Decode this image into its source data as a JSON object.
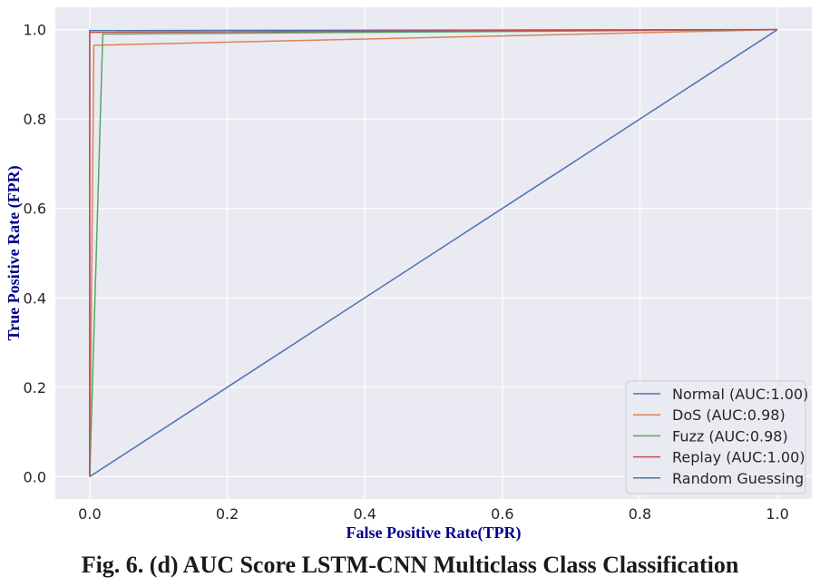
{
  "caption": "Fig. 6. (d) AUC Score LSTM-CNN Multiclass Class Classification",
  "chart_data": {
    "type": "line",
    "title": "",
    "xlabel": "False Positive Rate(TPR)",
    "ylabel": "True Positive Rate (FPR)",
    "xlim": [
      -0.05,
      1.05
    ],
    "ylim": [
      -0.05,
      1.05
    ],
    "xticks": [
      0.0,
      0.2,
      0.4,
      0.6,
      0.8,
      1.0
    ],
    "yticks": [
      0.0,
      0.2,
      0.4,
      0.6,
      0.8,
      1.0
    ],
    "xtick_labels": [
      "0.0",
      "0.2",
      "0.4",
      "0.6",
      "0.8",
      "1.0"
    ],
    "ytick_labels": [
      "0.0",
      "0.2",
      "0.4",
      "0.6",
      "0.8",
      "1.0"
    ],
    "grid": true,
    "background": "#eaeaf2",
    "legend_position": "lower-right",
    "series": [
      {
        "name": "Normal (AUC:1.00)",
        "color": "#4c72b0",
        "x": [
          0.0,
          0.0,
          1.0
        ],
        "y": [
          0.0,
          0.998,
          1.0
        ]
      },
      {
        "name": "DoS (AUC:0.98)",
        "color": "#dd8452",
        "x": [
          0.0,
          0.006,
          1.0
        ],
        "y": [
          0.0,
          0.965,
          1.0
        ]
      },
      {
        "name": "Fuzz (AUC:0.98)",
        "color": "#55a868",
        "x": [
          0.0,
          0.019,
          1.0
        ],
        "y": [
          0.0,
          0.99,
          1.0
        ]
      },
      {
        "name": "Replay (AUC:1.00)",
        "color": "#c44e52",
        "x": [
          0.0,
          0.0,
          1.0
        ],
        "y": [
          0.0,
          0.994,
          1.0
        ]
      },
      {
        "name": "Random Guessing",
        "color": "#4c72b0",
        "x": [
          0.0,
          1.0
        ],
        "y": [
          0.0,
          1.0
        ]
      }
    ]
  }
}
